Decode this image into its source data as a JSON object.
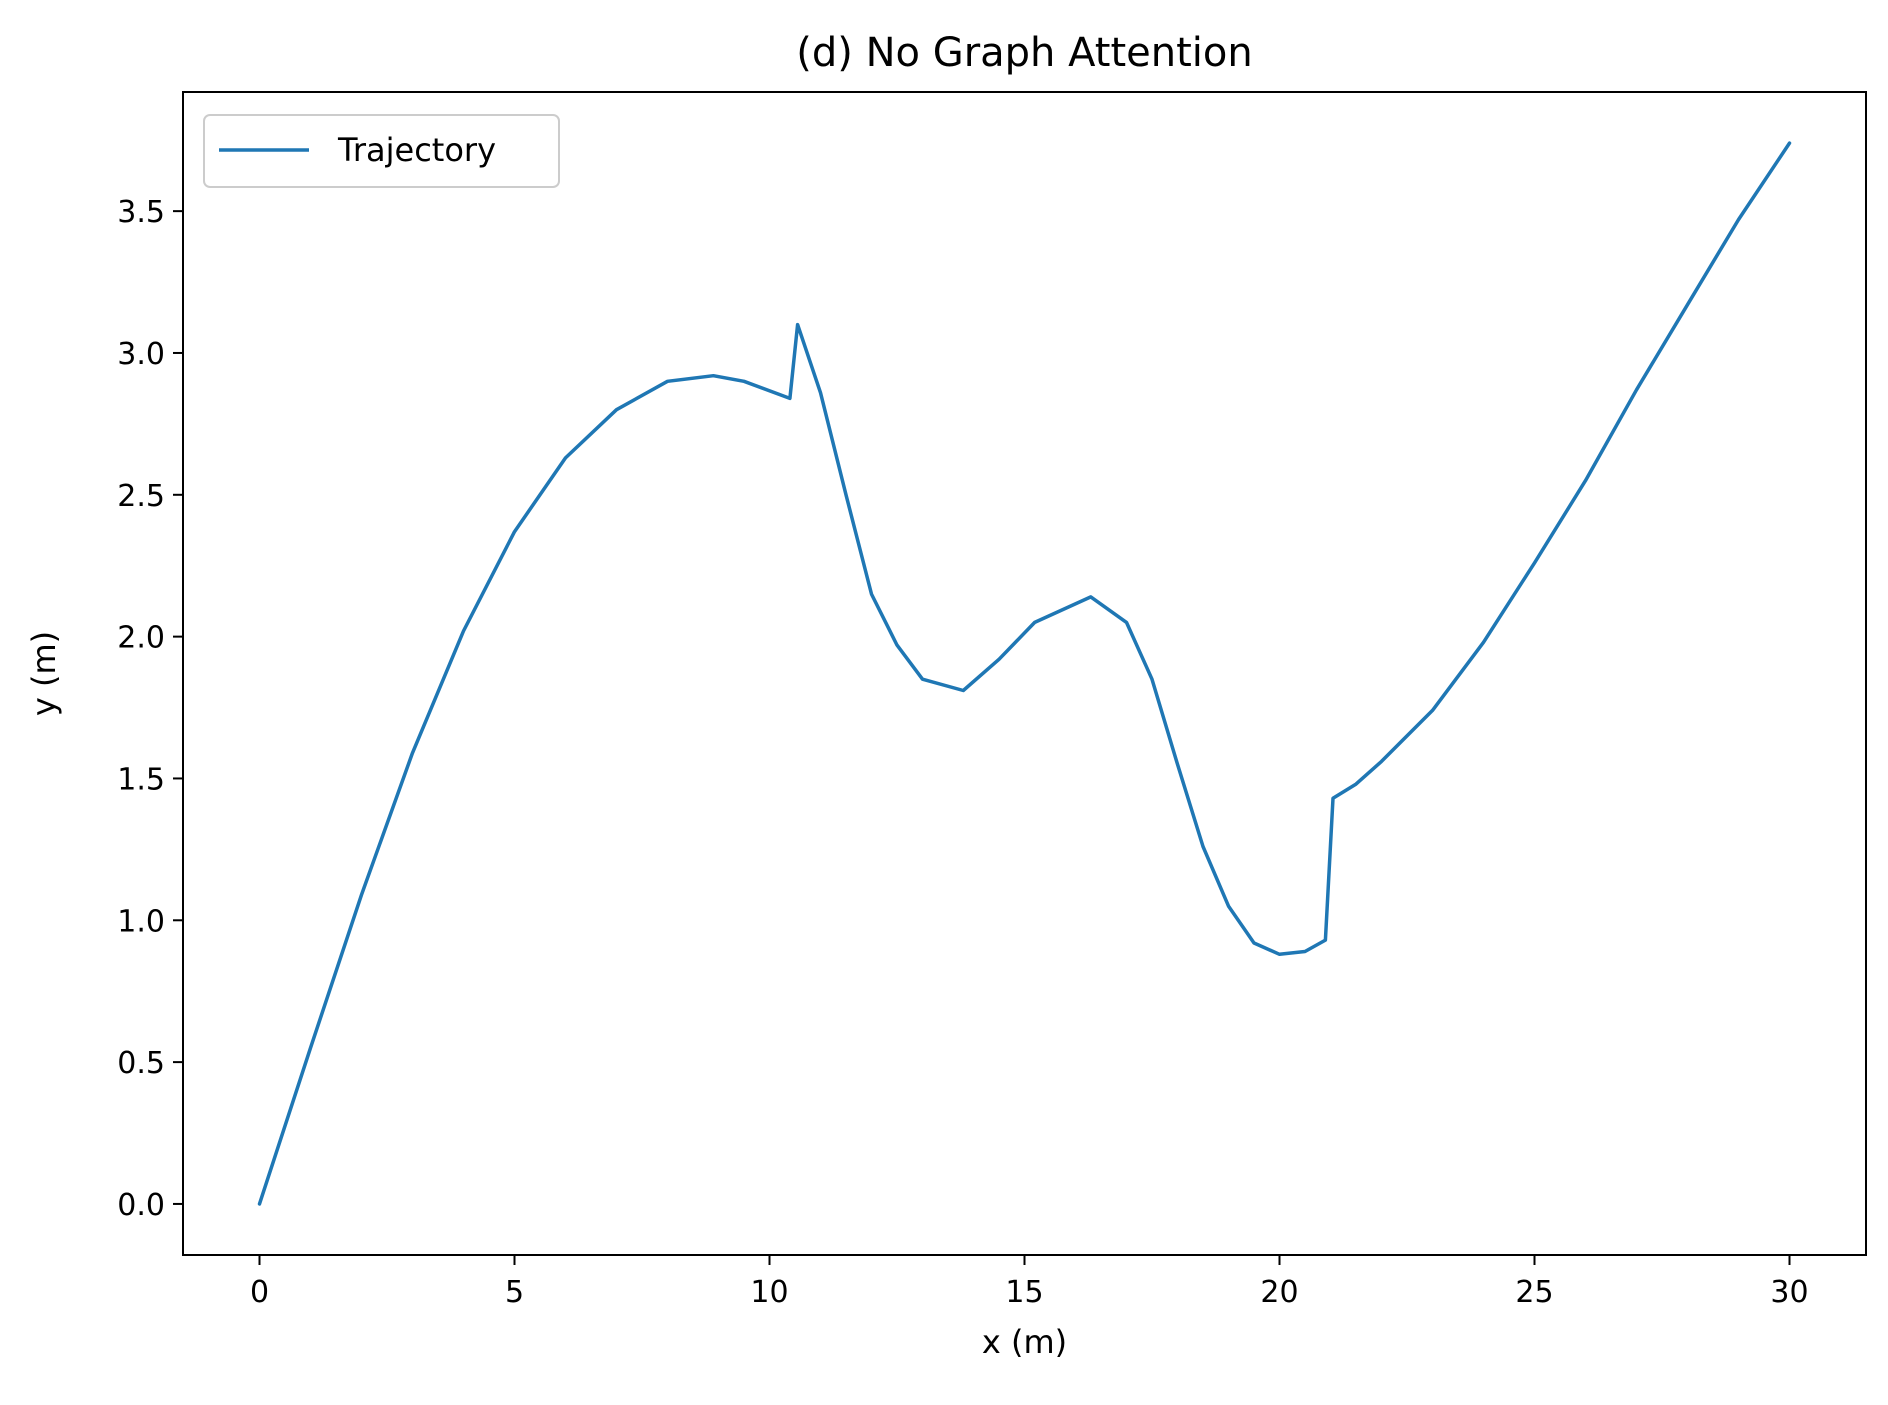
{
  "chart_data": {
    "type": "line",
    "title": "(d) No Graph Attention",
    "xlabel": "x (m)",
    "ylabel": "y (m)",
    "xlim": [
      -1.5,
      31.5
    ],
    "ylim": [
      -0.18,
      3.92
    ],
    "xticks": [
      0,
      5,
      10,
      15,
      20,
      25,
      30
    ],
    "yticks": [
      0.0,
      0.5,
      1.0,
      1.5,
      2.0,
      2.5,
      3.0,
      3.5
    ],
    "xtick_labels": [
      "0",
      "5",
      "10",
      "15",
      "20",
      "25",
      "30"
    ],
    "ytick_labels": [
      "0.0",
      "0.5",
      "1.0",
      "1.5",
      "2.0",
      "2.5",
      "3.0",
      "3.5"
    ],
    "grid": false,
    "legend": {
      "position": "top-left",
      "entries": [
        "Trajectory"
      ]
    },
    "colors": {
      "series": "#1f77b4",
      "axes": "#000000",
      "background": "#ffffff"
    },
    "series": [
      {
        "name": "Trajectory",
        "x": [
          0,
          1,
          2,
          3,
          4,
          5,
          6,
          7,
          8,
          8.9,
          9.5,
          10.4,
          10.55,
          11,
          11.5,
          12,
          12.5,
          13,
          13.8,
          14.5,
          15.2,
          16.3,
          17,
          17.5,
          18,
          18.5,
          19,
          19.5,
          20,
          20.5,
          20.9,
          21.05,
          21.5,
          22,
          23,
          24,
          25,
          26,
          27,
          28,
          29,
          30
        ],
        "y": [
          0.0,
          0.55,
          1.09,
          1.59,
          2.02,
          2.37,
          2.63,
          2.8,
          2.9,
          2.92,
          2.9,
          2.84,
          3.1,
          2.86,
          2.5,
          2.15,
          1.97,
          1.85,
          1.81,
          1.92,
          2.05,
          2.14,
          2.05,
          1.85,
          1.55,
          1.26,
          1.05,
          0.92,
          0.88,
          0.89,
          0.93,
          1.43,
          1.48,
          1.56,
          1.74,
          1.98,
          2.26,
          2.55,
          2.87,
          3.17,
          3.47,
          3.74
        ]
      }
    ]
  }
}
